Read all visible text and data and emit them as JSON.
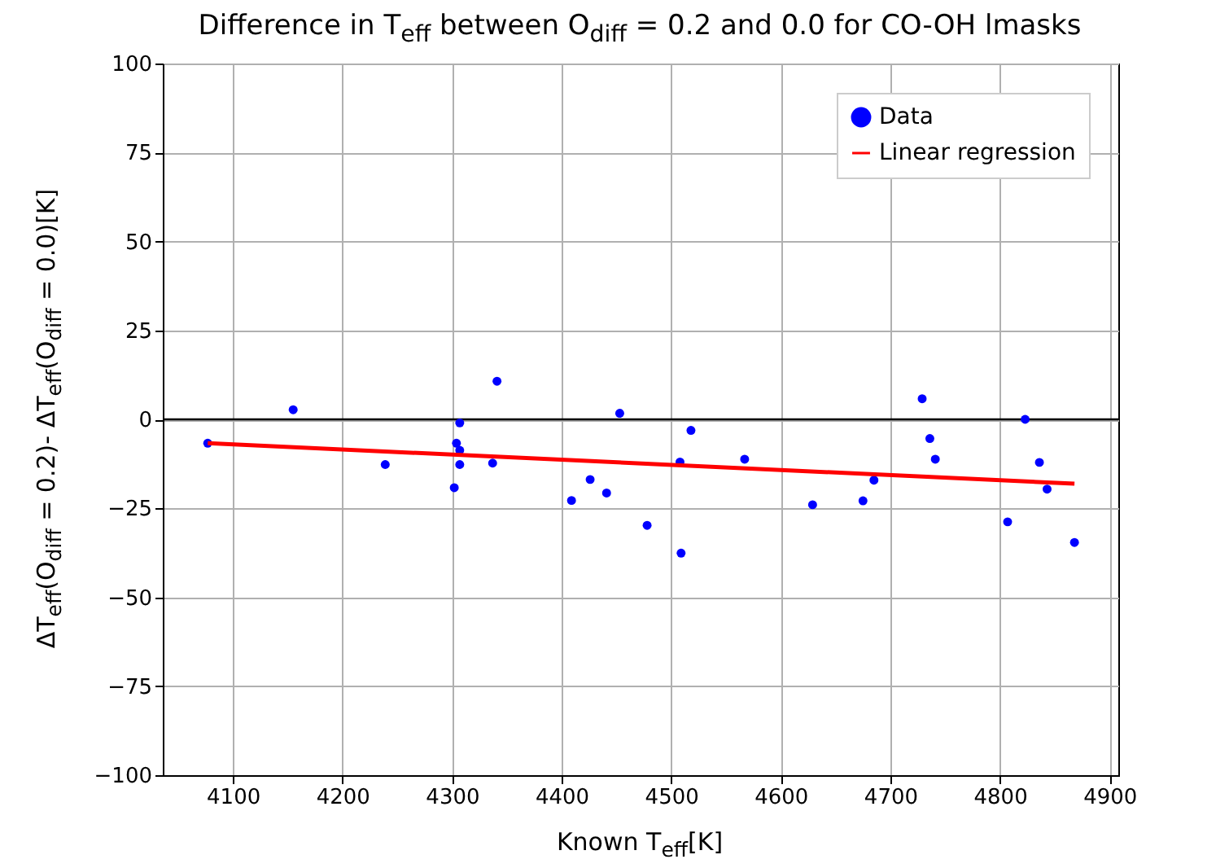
{
  "chart_data": {
    "type": "scatter",
    "title": "Difference in T$_{eff}$ between O$_{diff}$ = 0.2 and 0.0 for CO-OH lmasks",
    "xlabel": "Known T$_{eff}$[K]",
    "ylabel": "ΔT$_{eff}$(O$_{diff}$ = 0.2)- ΔT$_{eff}$(O$_{diff}$ = 0.0)[K]",
    "series": [
      {
        "name": "Data",
        "marker": "circle",
        "color": "#0000ff",
        "x": [
          4077,
          4155,
          4239,
          4302,
          4304,
          4307,
          4307,
          4307,
          4337,
          4341,
          4409,
          4426,
          4441,
          4453,
          4478,
          4509,
          4508,
          4518,
          4567,
          4629,
          4675,
          4685,
          4729,
          4736,
          4741,
          4807,
          4823,
          4836,
          4843,
          4868
        ],
        "values": [
          -6.7,
          2.7,
          -12.7,
          -19.2,
          -6.7,
          -8.7,
          -1.0,
          -12.7,
          -12.3,
          10.7,
          -22.8,
          -16.9,
          -20.7,
          1.7,
          -29.8,
          -37.6,
          -12.0,
          -3.1,
          -11.2,
          -24.0,
          -22.9,
          -17.1,
          5.8,
          -5.4,
          -11.2,
          -28.8,
          0,
          -12.1,
          -19.6,
          -34.6
        ]
      },
      {
        "name": "Linear regression",
        "type": "line",
        "color": "#ff0000",
        "x": [
          4077,
          4868
        ],
        "values": [
          -6.7,
          -18.1
        ]
      }
    ],
    "xlim": [
      4036,
      4908
    ],
    "xticks": [
      4100,
      4200,
      4300,
      4400,
      4500,
      4600,
      4700,
      4800,
      4900
    ],
    "ylim": [
      -100,
      100
    ],
    "yticks": [
      -100,
      -75,
      -50,
      -25,
      0,
      25,
      50,
      75,
      100
    ],
    "ref_lines": [
      {
        "axis": "y",
        "value": 0,
        "color": "#000000"
      }
    ],
    "grid": true,
    "legend": "top right"
  }
}
